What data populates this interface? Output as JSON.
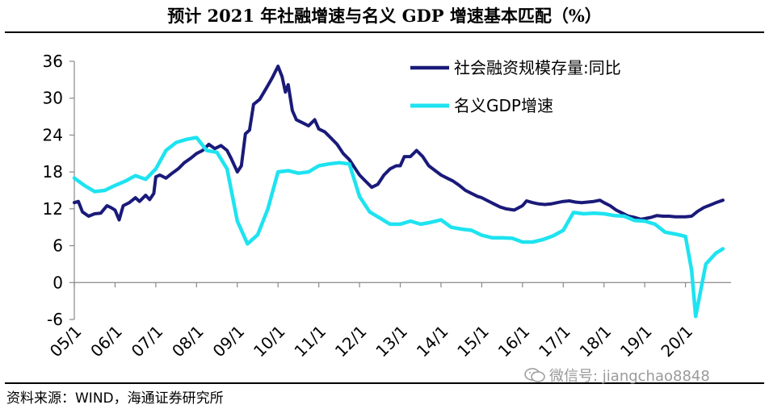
{
  "title": "预计 2021 年社融增速与名义 GDP 增速基本匹配（%）",
  "source": "资料来源：WIND，海通证券研究所",
  "watermark": "微信号: jiangchao8848",
  "colors": {
    "series1": "#1a1a7a",
    "series2": "#1ee3f0",
    "axis": "#888888"
  },
  "chart_data": {
    "type": "line",
    "title": "预计 2021 年社融增速与名义 GDP 增速基本匹配（%）",
    "xlabel": "",
    "ylabel": "",
    "ylim": [
      -6,
      36
    ],
    "yticks": [
      36,
      30,
      24,
      18,
      12,
      6,
      0,
      -6
    ],
    "xticks": [
      "05/1",
      "06/1",
      "07/1",
      "08/1",
      "09/1",
      "10/1",
      "11/1",
      "12/1",
      "13/1",
      "14/1",
      "15/1",
      "16/1",
      "17/1",
      "18/1",
      "19/1",
      "20/1"
    ],
    "xrange": [
      2005.0,
      2020.92
    ],
    "legend_position": "top-right",
    "series": [
      {
        "name": "社会融资规模存量:同比",
        "points": [
          [
            2005.0,
            13.0
          ],
          [
            2005.1,
            13.2
          ],
          [
            2005.2,
            11.5
          ],
          [
            2005.35,
            10.8
          ],
          [
            2005.5,
            11.2
          ],
          [
            2005.65,
            11.3
          ],
          [
            2005.8,
            12.5
          ],
          [
            2005.9,
            12.2
          ],
          [
            2006.0,
            11.8
          ],
          [
            2006.1,
            10.2
          ],
          [
            2006.2,
            12.5
          ],
          [
            2006.35,
            13.0
          ],
          [
            2006.5,
            13.8
          ],
          [
            2006.6,
            13.2
          ],
          [
            2006.75,
            14.2
          ],
          [
            2006.85,
            13.5
          ],
          [
            2006.95,
            14.5
          ],
          [
            2007.0,
            17.2
          ],
          [
            2007.1,
            17.5
          ],
          [
            2007.25,
            17.0
          ],
          [
            2007.4,
            17.8
          ],
          [
            2007.55,
            18.5
          ],
          [
            2007.7,
            19.5
          ],
          [
            2007.85,
            20.2
          ],
          [
            2008.0,
            21.0
          ],
          [
            2008.15,
            21.5
          ],
          [
            2008.3,
            22.5
          ],
          [
            2008.45,
            21.8
          ],
          [
            2008.6,
            22.3
          ],
          [
            2008.75,
            21.5
          ],
          [
            2008.85,
            20.2
          ],
          [
            2009.0,
            18.0
          ],
          [
            2009.1,
            19.0
          ],
          [
            2009.2,
            24.2
          ],
          [
            2009.3,
            24.8
          ],
          [
            2009.4,
            29.0
          ],
          [
            2009.55,
            29.8
          ],
          [
            2009.7,
            31.5
          ],
          [
            2009.85,
            33.2
          ],
          [
            2010.0,
            35.2
          ],
          [
            2010.1,
            33.5
          ],
          [
            2010.18,
            31.0
          ],
          [
            2010.25,
            32.2
          ],
          [
            2010.35,
            28.0
          ],
          [
            2010.45,
            26.5
          ],
          [
            2010.6,
            26.0
          ],
          [
            2010.75,
            25.5
          ],
          [
            2010.9,
            26.5
          ],
          [
            2011.0,
            25.0
          ],
          [
            2011.15,
            24.5
          ],
          [
            2011.3,
            23.5
          ],
          [
            2011.45,
            22.5
          ],
          [
            2011.6,
            21.0
          ],
          [
            2011.75,
            20.0
          ],
          [
            2011.9,
            18.5
          ],
          [
            2012.0,
            17.5
          ],
          [
            2012.15,
            16.5
          ],
          [
            2012.3,
            15.5
          ],
          [
            2012.45,
            16.0
          ],
          [
            2012.6,
            17.5
          ],
          [
            2012.75,
            18.5
          ],
          [
            2012.9,
            19.0
          ],
          [
            2013.0,
            19.0
          ],
          [
            2013.1,
            20.5
          ],
          [
            2013.25,
            20.5
          ],
          [
            2013.4,
            21.5
          ],
          [
            2013.55,
            20.5
          ],
          [
            2013.7,
            19.0
          ],
          [
            2013.9,
            18.0
          ],
          [
            2014.0,
            17.5
          ],
          [
            2014.15,
            17.0
          ],
          [
            2014.3,
            16.5
          ],
          [
            2014.45,
            15.8
          ],
          [
            2014.6,
            15.0
          ],
          [
            2014.75,
            14.5
          ],
          [
            2014.9,
            14.0
          ],
          [
            2015.0,
            13.8
          ],
          [
            2015.15,
            13.3
          ],
          [
            2015.3,
            12.8
          ],
          [
            2015.45,
            12.3
          ],
          [
            2015.6,
            12.0
          ],
          [
            2015.8,
            11.8
          ],
          [
            2016.0,
            12.5
          ],
          [
            2016.1,
            13.3
          ],
          [
            2016.25,
            13.0
          ],
          [
            2016.4,
            12.8
          ],
          [
            2016.55,
            12.7
          ],
          [
            2016.7,
            12.8
          ],
          [
            2016.85,
            13.0
          ],
          [
            2017.0,
            13.2
          ],
          [
            2017.15,
            13.3
          ],
          [
            2017.3,
            13.1
          ],
          [
            2017.45,
            13.0
          ],
          [
            2017.6,
            13.1
          ],
          [
            2017.75,
            13.2
          ],
          [
            2017.9,
            13.4
          ],
          [
            2018.0,
            13.0
          ],
          [
            2018.15,
            12.5
          ],
          [
            2018.3,
            11.8
          ],
          [
            2018.45,
            11.3
          ],
          [
            2018.6,
            10.8
          ],
          [
            2018.75,
            10.6
          ],
          [
            2018.9,
            10.3
          ],
          [
            2019.0,
            10.4
          ],
          [
            2019.15,
            10.6
          ],
          [
            2019.3,
            10.9
          ],
          [
            2019.45,
            10.8
          ],
          [
            2019.6,
            10.8
          ],
          [
            2019.75,
            10.7
          ],
          [
            2019.9,
            10.7
          ],
          [
            2020.0,
            10.7
          ],
          [
            2020.15,
            10.8
          ],
          [
            2020.3,
            11.6
          ],
          [
            2020.45,
            12.2
          ],
          [
            2020.6,
            12.6
          ],
          [
            2020.75,
            13.0
          ],
          [
            2020.92,
            13.4
          ]
        ]
      },
      {
        "name": "名义GDP增速",
        "points": [
          [
            2005.0,
            17.0
          ],
          [
            2005.25,
            15.8
          ],
          [
            2005.5,
            14.8
          ],
          [
            2005.75,
            15.0
          ],
          [
            2006.0,
            15.8
          ],
          [
            2006.25,
            16.5
          ],
          [
            2006.5,
            17.4
          ],
          [
            2006.75,
            16.8
          ],
          [
            2007.0,
            18.5
          ],
          [
            2007.25,
            21.5
          ],
          [
            2007.5,
            22.8
          ],
          [
            2007.75,
            23.3
          ],
          [
            2008.0,
            23.6
          ],
          [
            2008.25,
            21.5
          ],
          [
            2008.5,
            21.2
          ],
          [
            2008.75,
            18.5
          ],
          [
            2009.0,
            10.0
          ],
          [
            2009.25,
            6.3
          ],
          [
            2009.5,
            7.8
          ],
          [
            2009.75,
            12.0
          ],
          [
            2010.0,
            18.0
          ],
          [
            2010.25,
            18.2
          ],
          [
            2010.5,
            17.8
          ],
          [
            2010.75,
            18.0
          ],
          [
            2011.0,
            19.0
          ],
          [
            2011.25,
            19.3
          ],
          [
            2011.5,
            19.5
          ],
          [
            2011.75,
            19.3
          ],
          [
            2012.0,
            14.0
          ],
          [
            2012.25,
            11.5
          ],
          [
            2012.5,
            10.5
          ],
          [
            2012.75,
            9.5
          ],
          [
            2013.0,
            9.5
          ],
          [
            2013.25,
            10.0
          ],
          [
            2013.5,
            9.5
          ],
          [
            2013.75,
            9.8
          ],
          [
            2014.0,
            10.2
          ],
          [
            2014.25,
            9.0
          ],
          [
            2014.5,
            8.7
          ],
          [
            2014.75,
            8.5
          ],
          [
            2015.0,
            7.7
          ],
          [
            2015.25,
            7.3
          ],
          [
            2015.5,
            7.3
          ],
          [
            2015.75,
            7.2
          ],
          [
            2016.0,
            6.6
          ],
          [
            2016.25,
            6.6
          ],
          [
            2016.5,
            7.0
          ],
          [
            2016.75,
            7.6
          ],
          [
            2017.0,
            8.5
          ],
          [
            2017.25,
            11.4
          ],
          [
            2017.5,
            11.2
          ],
          [
            2017.75,
            11.3
          ],
          [
            2018.0,
            11.2
          ],
          [
            2018.25,
            10.9
          ],
          [
            2018.5,
            10.8
          ],
          [
            2018.75,
            10.1
          ],
          [
            2019.0,
            10.0
          ],
          [
            2019.25,
            9.5
          ],
          [
            2019.5,
            8.2
          ],
          [
            2019.75,
            7.9
          ],
          [
            2020.0,
            7.5
          ],
          [
            2020.15,
            2.0
          ],
          [
            2020.25,
            -5.5
          ],
          [
            2020.5,
            3.0
          ],
          [
            2020.75,
            4.8
          ],
          [
            2020.92,
            5.5
          ]
        ]
      }
    ]
  }
}
